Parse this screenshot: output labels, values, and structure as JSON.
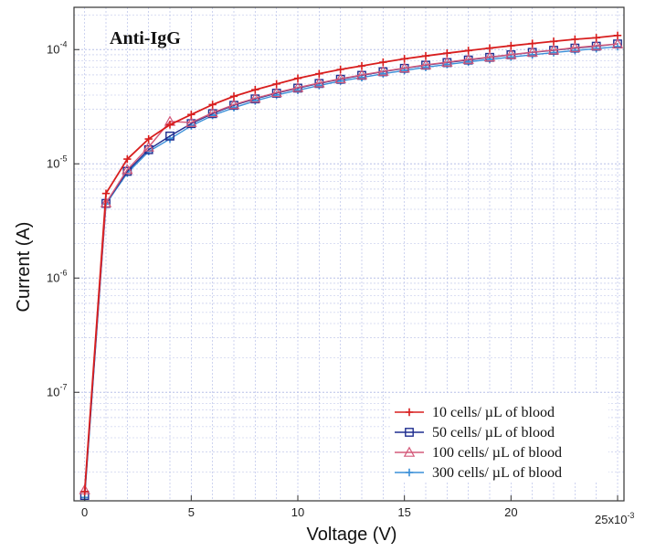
{
  "chart_data": {
    "type": "line",
    "title": "Anti-IgG",
    "xlabel": "Voltage (V)",
    "ylabel": "Current (A)",
    "x_scale_label": "x10",
    "x_scale_exponent": "-3",
    "xlim": [
      -0.5,
      25.3
    ],
    "ylim_log10": [
      -7.95,
      -3.63
    ],
    "y_scale": "log",
    "grid": true,
    "legend_position": "bottom-right",
    "x_ticks": [
      {
        "value": 0,
        "label": "0"
      },
      {
        "value": 5,
        "label": "5"
      },
      {
        "value": 10,
        "label": "10"
      },
      {
        "value": 15,
        "label": "15"
      },
      {
        "value": 20,
        "label": "20"
      },
      {
        "value": 25,
        "label": "25"
      }
    ],
    "y_ticks": [
      {
        "exp": -7,
        "base": "10",
        "label": "-7"
      },
      {
        "exp": -6,
        "base": "10",
        "label": "-6"
      },
      {
        "exp": -5,
        "base": "10",
        "label": "-5"
      },
      {
        "exp": -4,
        "base": "10",
        "label": "-4"
      }
    ],
    "x": [
      0,
      1,
      2,
      3,
      4,
      5,
      6,
      7,
      8,
      9,
      10,
      11,
      12,
      13,
      14,
      15,
      16,
      17,
      18,
      19,
      20,
      21,
      22,
      23,
      24,
      25
    ],
    "series": [
      {
        "name": "10   cells/ µL of blood",
        "color": "#d81e1e",
        "marker": "plus",
        "values": [
          1.35e-08,
          5.5e-06,
          1.1e-05,
          1.65e-05,
          2.2e-05,
          2.7e-05,
          3.3e-05,
          3.9e-05,
          4.45e-05,
          5e-05,
          5.6e-05,
          6.15e-05,
          6.7e-05,
          7.2e-05,
          7.75e-05,
          8.3e-05,
          8.8e-05,
          9.3e-05,
          9.8e-05,
          0.000103,
          0.000108,
          0.000113,
          0.000118,
          0.000123,
          0.000127,
          0.000133
        ]
      },
      {
        "name": "50   cells/ µL of blood",
        "color": "#1f2d8f",
        "marker": "square",
        "values": [
          1.25e-08,
          4.5e-06,
          8.6e-06,
          1.33e-05,
          1.75e-05,
          2.25e-05,
          2.75e-05,
          3.25e-05,
          3.7e-05,
          4.15e-05,
          4.6e-05,
          5.05e-05,
          5.5e-05,
          5.95e-05,
          6.4e-05,
          6.85e-05,
          7.3e-05,
          7.7e-05,
          8.1e-05,
          8.55e-05,
          9e-05,
          9.45e-05,
          9.85e-05,
          0.000103,
          0.000107,
          0.000112
        ]
      },
      {
        "name": "100 cells/ µL of blood",
        "color": "#d45a7a",
        "marker": "triangle",
        "values": [
          1.4e-08,
          4.55e-06,
          8.9e-06,
          1.4e-05,
          2.35e-05,
          2.3e-05,
          2.8e-05,
          3.3e-05,
          3.75e-05,
          4.2e-05,
          4.65e-05,
          5.1e-05,
          5.55e-05,
          6e-05,
          6.45e-05,
          6.9e-05,
          7.35e-05,
          7.75e-05,
          8.2e-05,
          8.6e-05,
          9.05e-05,
          9.5e-05,
          9.9e-05,
          0.000104,
          0.000108,
          0.000112
        ]
      },
      {
        "name": "300 cells/ µL of blood",
        "color": "#3a8fd8",
        "marker": "plus",
        "values": [
          1.2e-08,
          4.45e-06,
          8.3e-06,
          1.28e-05,
          1.65e-05,
          2.15e-05,
          2.65e-05,
          3.1e-05,
          3.55e-05,
          4e-05,
          4.4e-05,
          4.85e-05,
          5.3e-05,
          5.7e-05,
          6.15e-05,
          6.55e-05,
          7e-05,
          7.4e-05,
          7.8e-05,
          8.2e-05,
          8.6e-05,
          9e-05,
          9.4e-05,
          9.8e-05,
          0.000102,
          0.000106
        ]
      }
    ]
  }
}
